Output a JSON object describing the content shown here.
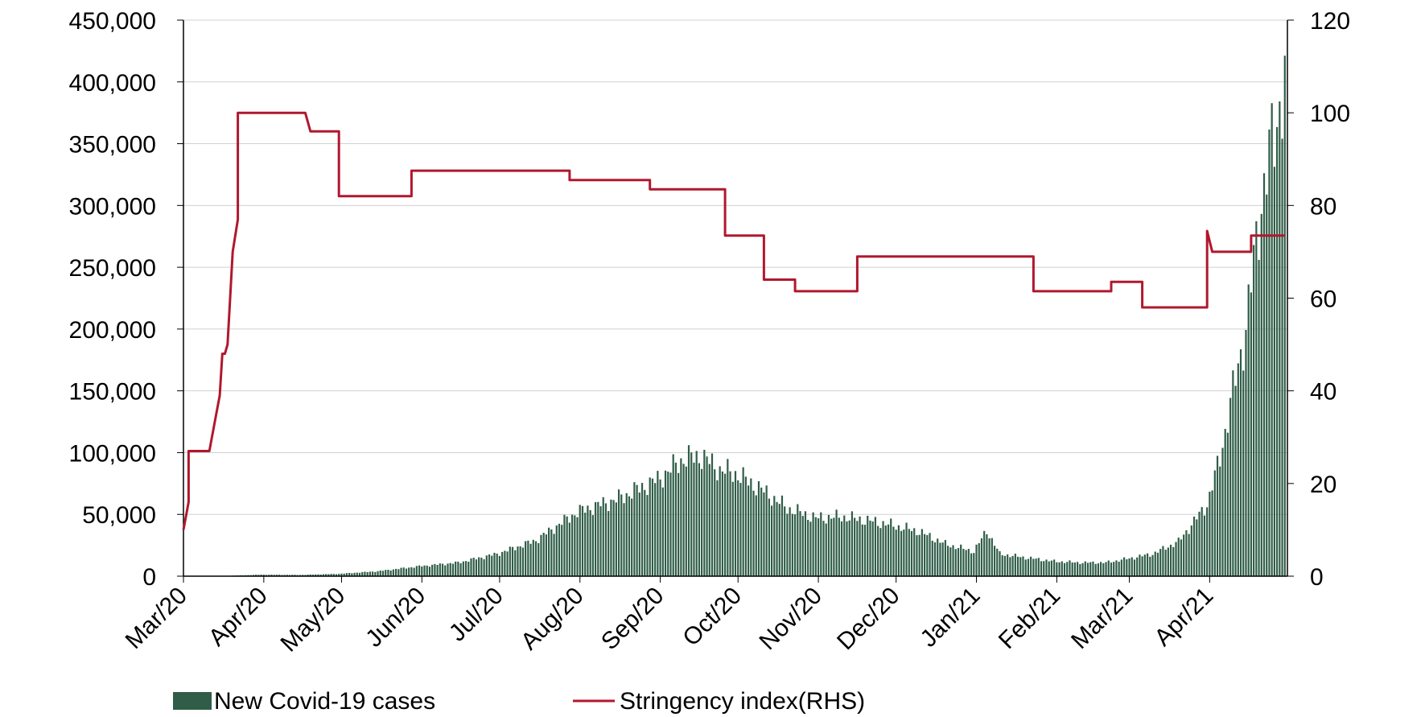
{
  "chart_data": {
    "type": "bar+line",
    "x_axis": {
      "tick_labels": [
        "Mar/20",
        "Apr/20",
        "May/20",
        "Jun/20",
        "Jul/20",
        "Aug/20",
        "Sep/20",
        "Oct/20",
        "Nov/20",
        "Dec/20",
        "Jan/21",
        "Feb/21",
        "Mar/21",
        "Apr/21"
      ],
      "tick_dates": [
        "2020-03-01",
        "2020-04-01",
        "2020-05-01",
        "2020-06-01",
        "2020-07-01",
        "2020-08-01",
        "2020-09-01",
        "2020-10-01",
        "2020-11-01",
        "2020-12-01",
        "2021-01-01",
        "2021-02-01",
        "2021-03-01",
        "2021-04-01"
      ],
      "range": [
        "2020-03-01",
        "2021-05-01"
      ]
    },
    "y_left": {
      "range": [
        0,
        450000
      ],
      "tick_labels": [
        "0",
        "50,000",
        "100,000",
        "150,000",
        "200,000",
        "250,000",
        "300,000",
        "350,000",
        "400,000",
        "450,000"
      ]
    },
    "y_right": {
      "range": [
        0,
        120
      ],
      "tick_labels": [
        "0",
        "20",
        "40",
        "60",
        "80",
        "100",
        "120"
      ]
    },
    "series": [
      {
        "name": "New Covid-19 cases",
        "kind": "bar",
        "axis": "left",
        "color": "#2f5d47",
        "points": [
          [
            "2020-03-01",
            50
          ],
          [
            "2020-03-15",
            100
          ],
          [
            "2020-03-31",
            1200
          ],
          [
            "2020-04-15",
            1000
          ],
          [
            "2020-04-30",
            1900
          ],
          [
            "2020-05-15",
            4000
          ],
          [
            "2020-05-31",
            8000
          ],
          [
            "2020-06-15",
            11000
          ],
          [
            "2020-06-30",
            18000
          ],
          [
            "2020-07-15",
            29000
          ],
          [
            "2020-07-31",
            52000
          ],
          [
            "2020-08-15",
            62000
          ],
          [
            "2020-08-31",
            78000
          ],
          [
            "2020-09-10",
            95000
          ],
          [
            "2020-09-17",
            97000
          ],
          [
            "2020-09-24",
            86000
          ],
          [
            "2020-09-30",
            83000
          ],
          [
            "2020-10-10",
            70000
          ],
          [
            "2020-10-20",
            55000
          ],
          [
            "2020-10-31",
            47000
          ],
          [
            "2020-11-10",
            48000
          ],
          [
            "2020-11-20",
            45000
          ],
          [
            "2020-11-30",
            41000
          ],
          [
            "2020-12-10",
            36000
          ],
          [
            "2020-12-20",
            26000
          ],
          [
            "2020-12-31",
            20000
          ],
          [
            "2021-01-05",
            37000
          ],
          [
            "2021-01-10",
            18000
          ],
          [
            "2021-01-20",
            15000
          ],
          [
            "2021-01-31",
            12000
          ],
          [
            "2021-02-10",
            11000
          ],
          [
            "2021-02-20",
            11000
          ],
          [
            "2021-02-28",
            14000
          ],
          [
            "2021-03-10",
            18000
          ],
          [
            "2021-03-20",
            28000
          ],
          [
            "2021-03-31",
            58000
          ],
          [
            "2021-04-05",
            96000
          ],
          [
            "2021-04-10",
            150000
          ],
          [
            "2021-04-15",
            200000
          ],
          [
            "2021-04-20",
            290000
          ],
          [
            "2021-04-25",
            350000
          ],
          [
            "2021-04-30",
            402000
          ]
        ]
      },
      {
        "name": "Stringency index(RHS)",
        "kind": "line",
        "axis": "right",
        "color": "#b0182d",
        "points": [
          [
            "2020-03-01",
            10
          ],
          [
            "2020-03-03",
            16
          ],
          [
            "2020-03-03",
            27
          ],
          [
            "2020-03-11",
            27
          ],
          [
            "2020-03-13",
            33
          ],
          [
            "2020-03-15",
            39
          ],
          [
            "2020-03-16",
            48
          ],
          [
            "2020-03-17",
            48
          ],
          [
            "2020-03-18",
            50
          ],
          [
            "2020-03-20",
            70
          ],
          [
            "2020-03-22",
            77
          ],
          [
            "2020-03-22",
            100
          ],
          [
            "2020-04-17",
            100
          ],
          [
            "2020-04-19",
            96
          ],
          [
            "2020-04-30",
            96
          ],
          [
            "2020-04-30",
            82
          ],
          [
            "2020-05-28",
            82
          ],
          [
            "2020-05-28",
            87.5
          ],
          [
            "2020-07-28",
            87.5
          ],
          [
            "2020-07-28",
            85.5
          ],
          [
            "2020-08-28",
            85.5
          ],
          [
            "2020-08-28",
            83.5
          ],
          [
            "2020-09-26",
            83.5
          ],
          [
            "2020-09-26",
            73.5
          ],
          [
            "2020-10-11",
            73.5
          ],
          [
            "2020-10-11",
            64
          ],
          [
            "2020-10-23",
            64
          ],
          [
            "2020-10-23",
            61.5
          ],
          [
            "2020-11-16",
            61.5
          ],
          [
            "2020-11-16",
            69
          ],
          [
            "2021-01-23",
            69
          ],
          [
            "2021-01-23",
            61.5
          ],
          [
            "2021-02-22",
            61.5
          ],
          [
            "2021-02-22",
            63.5
          ],
          [
            "2021-03-06",
            63.5
          ],
          [
            "2021-03-06",
            58
          ],
          [
            "2021-03-31",
            58
          ],
          [
            "2021-03-31",
            74.5
          ],
          [
            "2021-04-02",
            70
          ],
          [
            "2021-04-17",
            70
          ],
          [
            "2021-04-17",
            73.5
          ],
          [
            "2021-04-30",
            73.5
          ]
        ]
      }
    ],
    "legend": {
      "position": "bottom",
      "entries": [
        "New Covid-19 cases",
        "Stringency index(RHS)"
      ]
    },
    "grid": "horizontal"
  }
}
